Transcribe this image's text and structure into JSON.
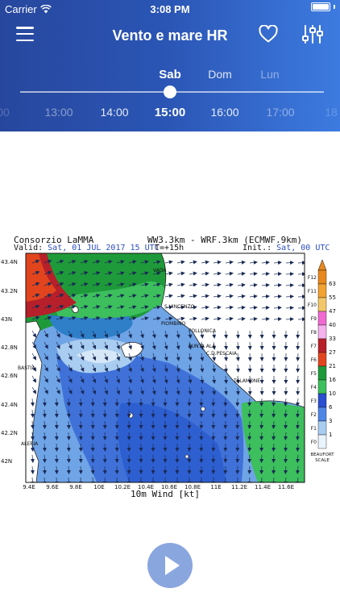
{
  "status": {
    "carrier": "Carrier",
    "time": "3:08 PM"
  },
  "header": {
    "title": "Vento e mare HR"
  },
  "days": [
    {
      "label": "Sab",
      "state": "selected"
    },
    {
      "label": "Dom",
      "state": "normal"
    },
    {
      "label": "Lun",
      "state": "dim"
    }
  ],
  "slider": {
    "position": 0.5
  },
  "hours": [
    "00",
    "13:00",
    "14:00",
    "15:00",
    "16:00",
    "17:00",
    "18"
  ],
  "selected_hour": "15:00",
  "map": {
    "org": "Consorzio LaMMA",
    "model": "WW3.3km - WRF.3km (ECMWF.9km)",
    "valid_label": "Valid:",
    "valid_value": "Sat, 01 JUL 2017  15 UTC",
    "step": "T=+15h",
    "init_label": "Init.:",
    "init_value": "Sat, 00 UTC",
    "footer": "10m Wind [kt]",
    "lat_labels": [
      "43.4N",
      "43.2N",
      "43N",
      "42.8N",
      "42.6N",
      "42.4N",
      "42.2N",
      "42N"
    ],
    "lon_labels": [
      "9.4E",
      "9.6E",
      "9.8E",
      "10E",
      "10.2E",
      "10.4E",
      "10.6E",
      "10.8E",
      "11E",
      "11.2E",
      "11.4E",
      "11.6E"
    ],
    "places": [
      "VADA",
      "S.VINCENZO",
      "PIOMBINO",
      "FOLLONICA",
      "PUNTA ALA",
      "C.D.PESCAIA",
      "TALAMONE",
      "BASTIA",
      "ALERIA"
    ],
    "scale_values": [
      "63",
      "55",
      "47",
      "40",
      "33",
      "27",
      "21",
      "16",
      "10",
      "6",
      "3",
      "1"
    ],
    "scale_forces": [
      "F12",
      "F11",
      "F10",
      "F9",
      "F8",
      "F7",
      "F6",
      "F5",
      "F4",
      "F3",
      "F2",
      "F1",
      "F0"
    ],
    "scale_title": "BEAUFORT SCALE",
    "scale_colors": [
      "#e8881f",
      "#f2a232",
      "#f2c76b",
      "#f06ad0",
      "#f5b2ee",
      "#b7202a",
      "#e2451e",
      "#1e9a3a",
      "#3cbf5c",
      "#2a4fd0",
      "#4f86e6",
      "#a9cdf0",
      "#e9f3fc"
    ]
  },
  "controls": {
    "play": "play"
  }
}
